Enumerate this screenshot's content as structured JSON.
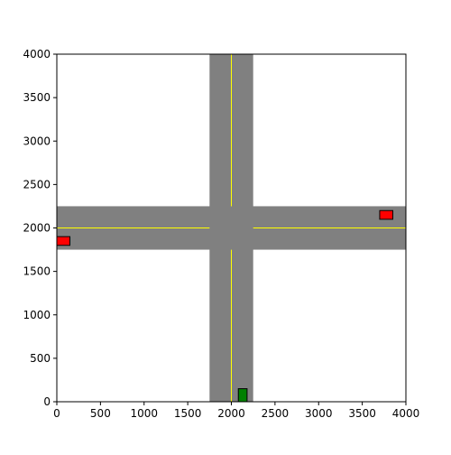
{
  "chart_data": {
    "type": "scatter",
    "title": "",
    "xlabel": "",
    "ylabel": "",
    "xlim": [
      0,
      4000
    ],
    "ylim": [
      0,
      4000
    ],
    "xticks": [
      0,
      500,
      1000,
      1500,
      2000,
      2500,
      3000,
      3500,
      4000
    ],
    "yticks": [
      0,
      500,
      1000,
      1500,
      2000,
      2500,
      3000,
      3500,
      4000
    ],
    "grid": false,
    "legend": "none",
    "roads": [
      {
        "orientation": "vertical",
        "center": 2000,
        "width": 500,
        "color": "#808080"
      },
      {
        "orientation": "horizontal",
        "center": 2000,
        "width": 500,
        "color": "#808080"
      }
    ],
    "lane_lines": [
      {
        "x": [
          2000,
          2000
        ],
        "y": [
          0,
          1750
        ],
        "color": "#ffff00"
      },
      {
        "x": [
          2000,
          2000
        ],
        "y": [
          2250,
          4000
        ],
        "color": "#ffff00"
      },
      {
        "x": [
          0,
          1750
        ],
        "y": [
          2000,
          2000
        ],
        "color": "#ffff00"
      },
      {
        "x": [
          2250,
          4000
        ],
        "y": [
          2000,
          2000
        ],
        "color": "#ffff00"
      }
    ],
    "vehicles": [
      {
        "name": "red-car-west",
        "x": [
          0,
          150
        ],
        "y": [
          1800,
          1900
        ],
        "color": "#ff0000"
      },
      {
        "name": "red-car-east",
        "x": [
          3700,
          3850
        ],
        "y": [
          2100,
          2200
        ],
        "color": "#ff0000"
      },
      {
        "name": "green-car-south",
        "x": [
          2080,
          2180
        ],
        "y": [
          0,
          150
        ],
        "color": "#008000"
      }
    ]
  }
}
